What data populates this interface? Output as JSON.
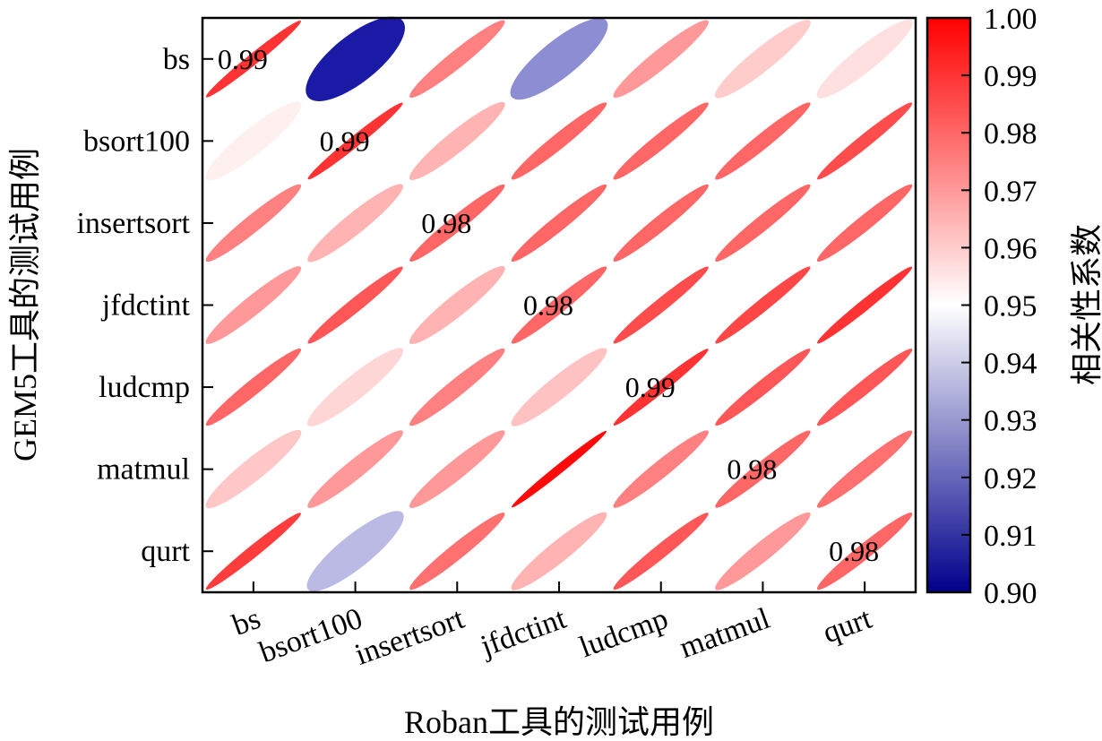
{
  "chart_data": {
    "type": "heatmap",
    "mark": "ellipse",
    "xlabel": "Roban工具的测试用例",
    "ylabel": "GEM5工具的测试用例",
    "x_categories": [
      "bs",
      "bsort100",
      "insertsort",
      "jfdctint",
      "ludcmp",
      "matmul",
      "qurt"
    ],
    "y_categories": [
      "bs",
      "bsort100",
      "insertsort",
      "jfdctint",
      "ludcmp",
      "matmul",
      "qurt"
    ],
    "values": [
      [
        0.99,
        0.9,
        0.975,
        0.925,
        0.97,
        0.96,
        0.956
      ],
      [
        0.953,
        0.99,
        0.965,
        0.98,
        0.98,
        0.98,
        0.985
      ],
      [
        0.975,
        0.965,
        0.98,
        0.98,
        0.98,
        0.98,
        0.98
      ],
      [
        0.97,
        0.983,
        0.965,
        0.98,
        0.985,
        0.986,
        0.99
      ],
      [
        0.98,
        0.958,
        0.975,
        0.962,
        0.99,
        0.983,
        0.983
      ],
      [
        0.961,
        0.97,
        0.97,
        0.998,
        0.975,
        0.98,
        0.978
      ],
      [
        0.988,
        0.935,
        0.978,
        0.965,
        0.983,
        0.97,
        0.98
      ]
    ],
    "diagonal_labels": [
      "0.99",
      "0.99",
      "0.98",
      "0.98",
      "0.99",
      "0.98",
      "0.98"
    ],
    "colorbar": {
      "title": "相关性系数",
      "range": [
        0.9,
        1.0
      ],
      "ticks": [
        "1.00",
        "0.99",
        "0.98",
        "0.97",
        "0.96",
        "0.95",
        "0.94",
        "0.93",
        "0.92",
        "0.91",
        "0.90"
      ],
      "colors": {
        "low": "#1a1aa6",
        "mid": "#ffffff",
        "high": "#ff0000"
      }
    }
  }
}
